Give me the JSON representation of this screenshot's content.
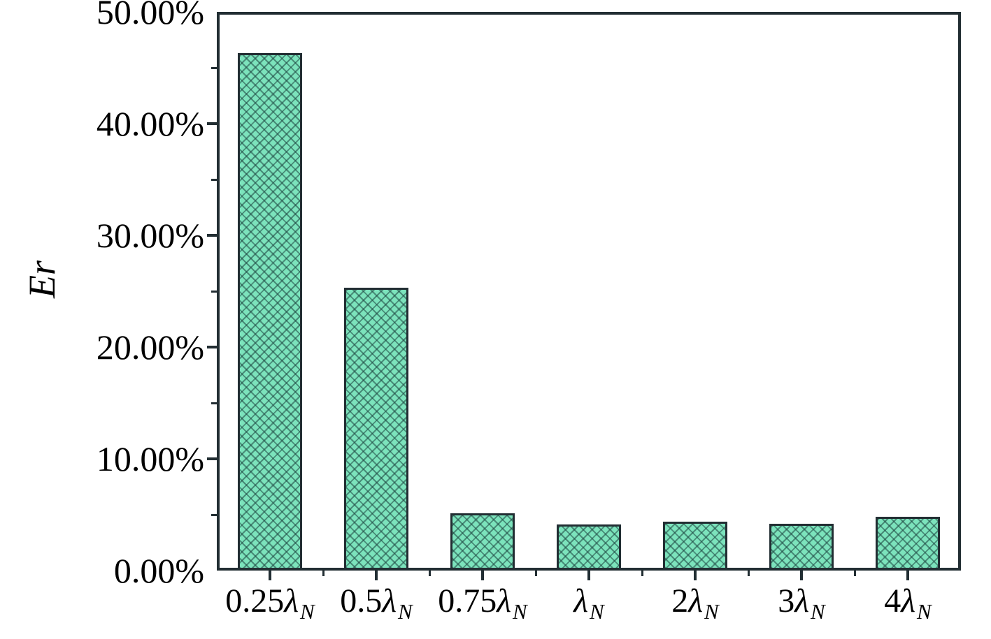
{
  "colors": {
    "background": "#ffffff",
    "text": "#000000",
    "axis": "#222e33",
    "bar-fill": "#7ce3bc",
    "hatch": "rgba(30,70,65,0.55)"
  },
  "chart_data": {
    "type": "bar",
    "title": "",
    "xlabel": "",
    "ylabel": "Er",
    "categories": [
      {
        "prefix": "0.25",
        "symbol": "λ",
        "sub": "N"
      },
      {
        "prefix": "0.5",
        "symbol": "λ",
        "sub": "N"
      },
      {
        "prefix": "0.75",
        "symbol": "λ",
        "sub": "N"
      },
      {
        "prefix": "",
        "symbol": "λ",
        "sub": "N"
      },
      {
        "prefix": "2",
        "symbol": "λ",
        "sub": "N"
      },
      {
        "prefix": "3",
        "symbol": "λ",
        "sub": "N"
      },
      {
        "prefix": "4",
        "symbol": "λ",
        "sub": "N"
      }
    ],
    "values": [
      46.3,
      25.3,
      5.1,
      4.1,
      4.4,
      4.2,
      4.8
    ],
    "ylim": [
      0,
      50
    ],
    "ytick_step": 10,
    "ytick_minor_step": 5,
    "yticks": [
      "0.00%",
      "10.00%",
      "20.00%",
      "30.00%",
      "40.00%",
      "50.00%"
    ],
    "grid": false,
    "legend": null,
    "bar_pattern": "diagonal-crosshatch"
  }
}
